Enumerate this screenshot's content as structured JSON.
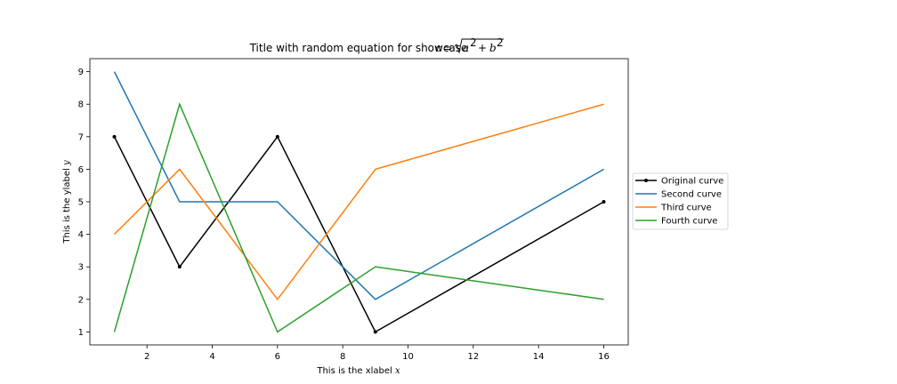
{
  "chart_data": {
    "type": "line",
    "title": "Title with random equation for showcase",
    "title_equation": "c = √(a² + b²)",
    "xlabel": "This is the xlabel x",
    "xlabel_text": "This is the xlabel",
    "xlabel_var": "x",
    "ylabel": "This is the ylabel y",
    "ylabel_text": "This is the ylabel",
    "ylabel_var": "y",
    "x": [
      1,
      3,
      6,
      9,
      16
    ],
    "xlim": [
      0.25,
      16.75
    ],
    "ylim": [
      0.6,
      9.4
    ],
    "xticks": [
      2,
      4,
      6,
      8,
      10,
      12,
      14,
      16
    ],
    "yticks": [
      1,
      2,
      3,
      4,
      5,
      6,
      7,
      8,
      9
    ],
    "grid": false,
    "legend_position": "center-right, outside plot",
    "series": [
      {
        "name": "Original curve",
        "values": [
          7,
          3,
          7,
          1,
          5
        ],
        "color": "#000000",
        "marker": "dot"
      },
      {
        "name": "Second curve",
        "values": [
          9,
          5,
          5,
          2,
          6
        ],
        "color": "#1f77b4",
        "marker": "none"
      },
      {
        "name": "Third curve",
        "values": [
          4,
          6,
          2,
          6,
          8
        ],
        "color": "#ff7f0e",
        "marker": "none"
      },
      {
        "name": "Fourth curve",
        "values": [
          1,
          8,
          1,
          3,
          2
        ],
        "color": "#2ca02c",
        "marker": "none"
      }
    ]
  }
}
